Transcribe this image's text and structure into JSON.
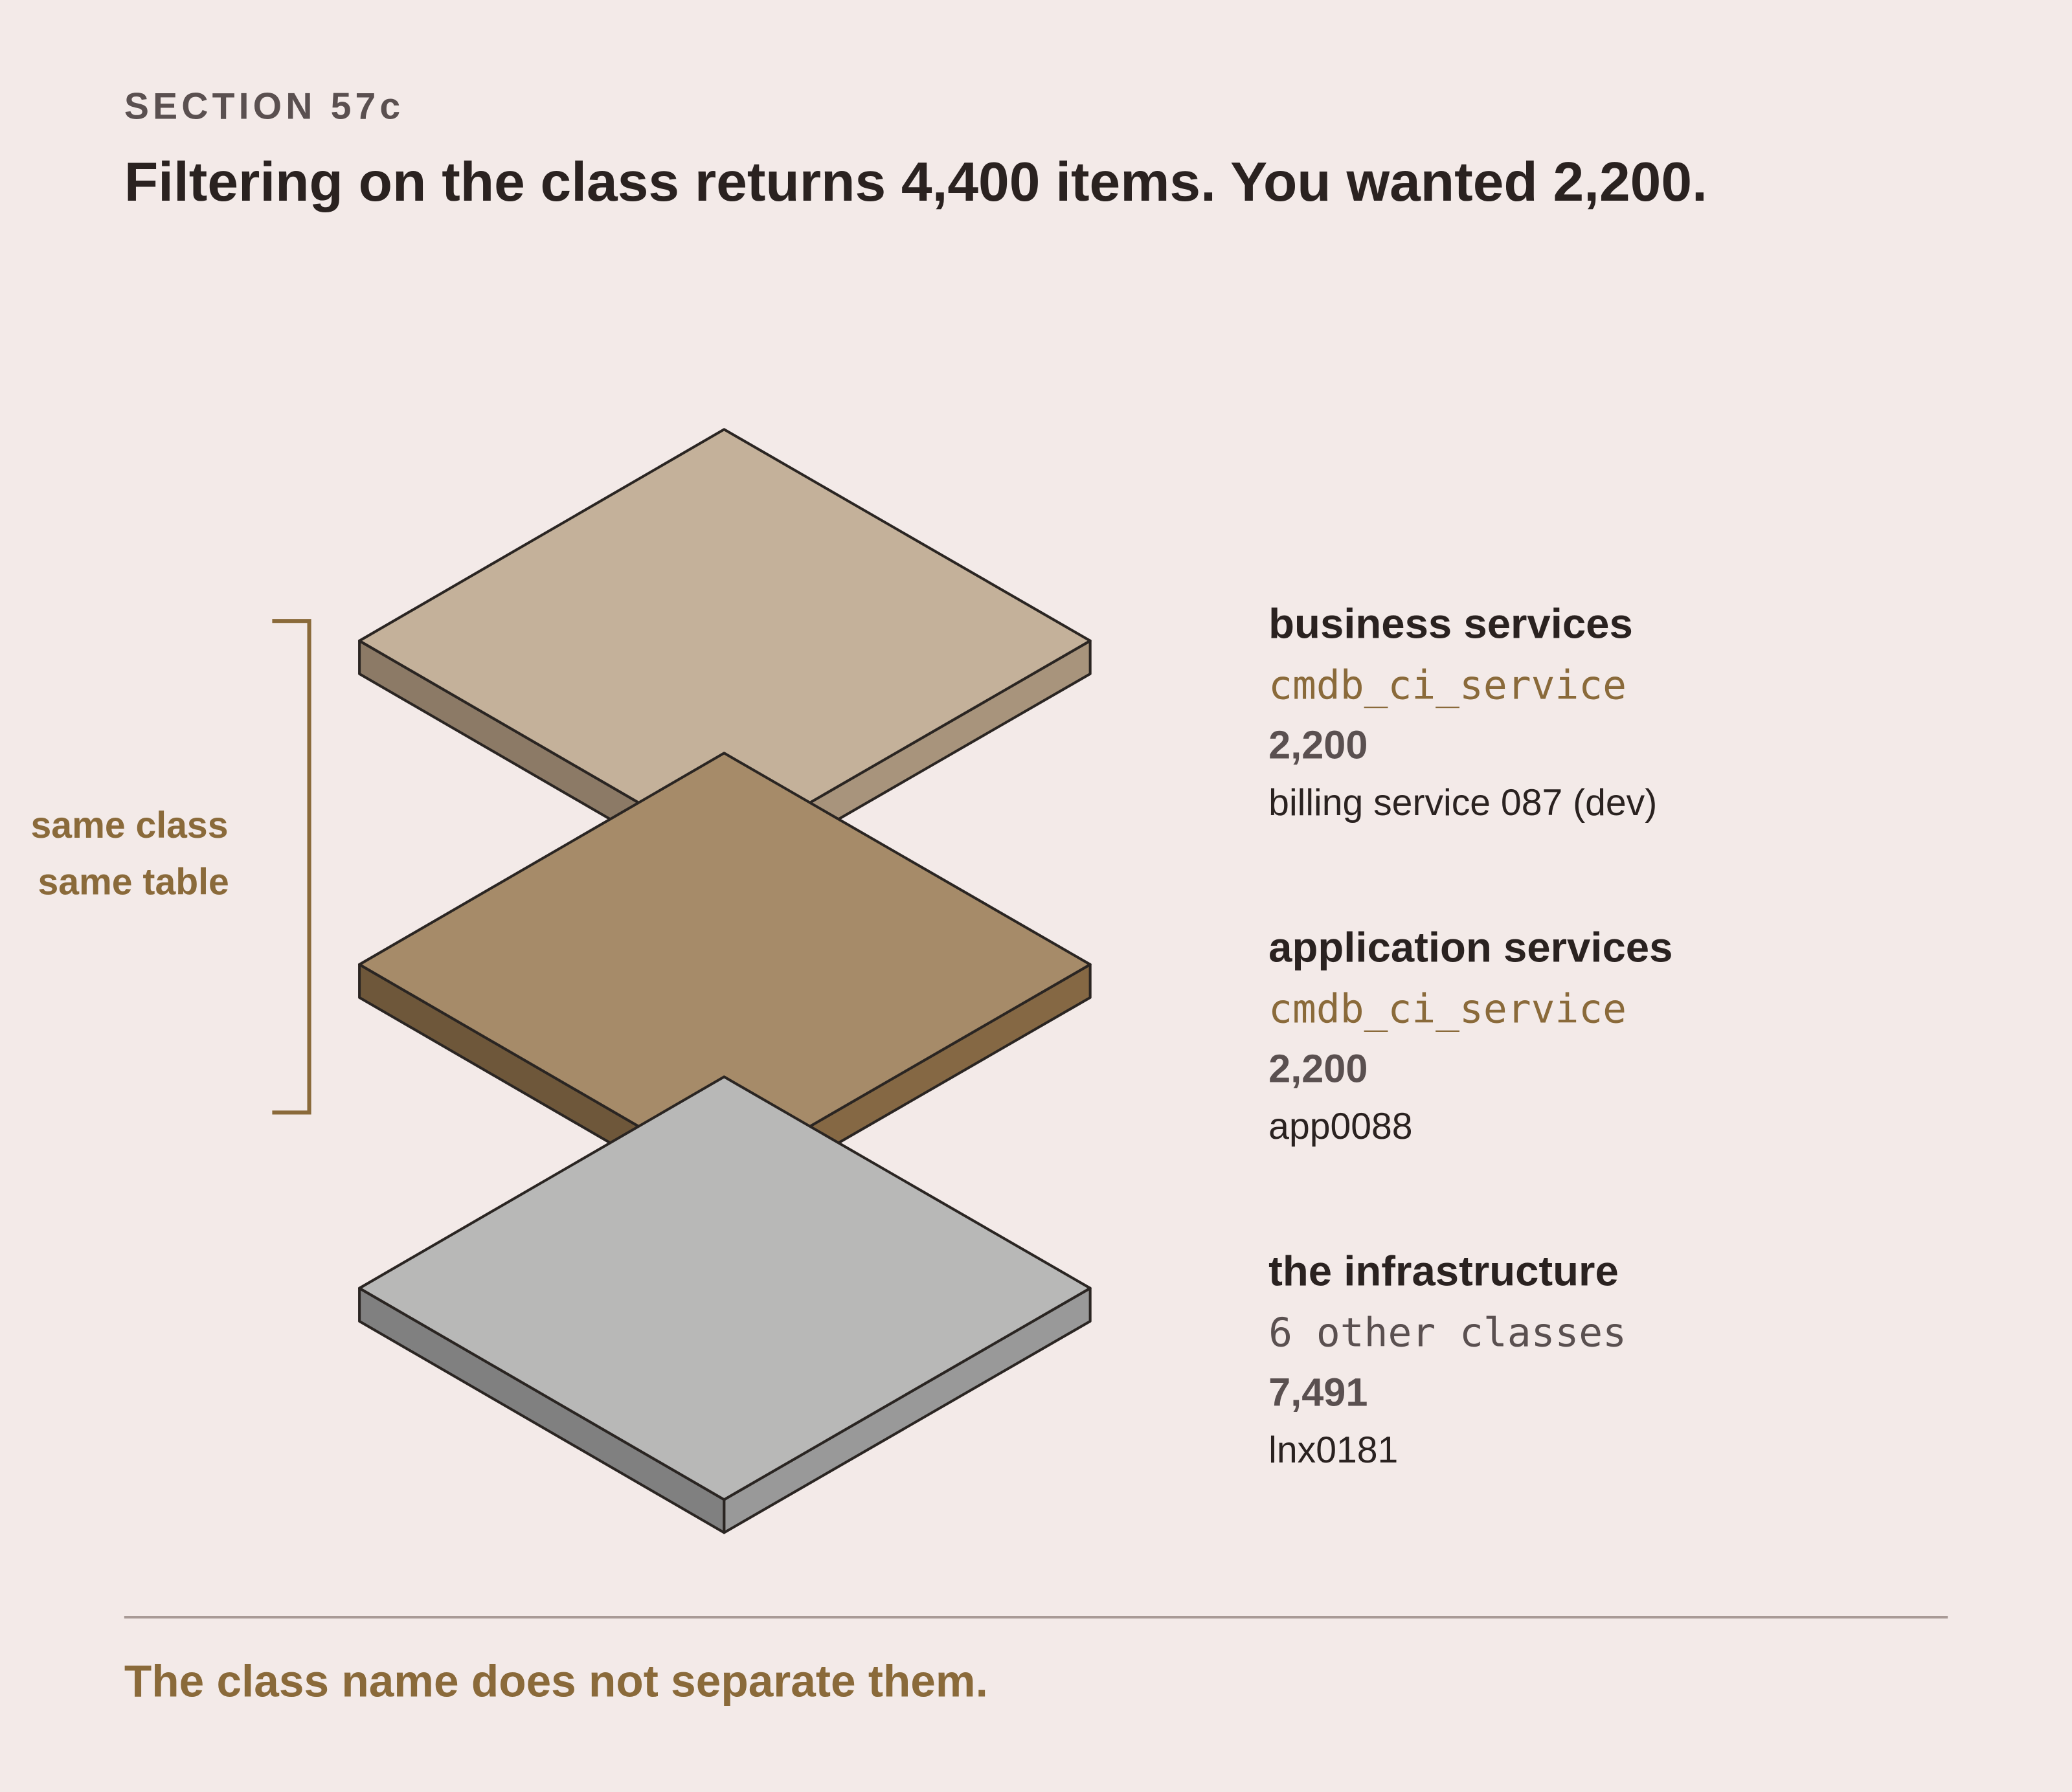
{
  "header": {
    "section": "SECTION 57c",
    "title": "Filtering on the class returns 4,400 items. You wanted 2,200."
  },
  "bracket": {
    "lines": [
      "same class",
      "same table"
    ]
  },
  "layers": [
    {
      "label": "business services",
      "class": "cmdb_ci_service",
      "count": "2,200",
      "example": "billing service 087 (dev)"
    },
    {
      "label": "application services",
      "class": "cmdb_ci_service",
      "count": "2,200",
      "example": "app0088"
    },
    {
      "label": "the infrastructure",
      "class": "6 other classes",
      "count": "7,491",
      "example": "lnx0181"
    }
  ],
  "footer": "The class name does not separate them."
}
